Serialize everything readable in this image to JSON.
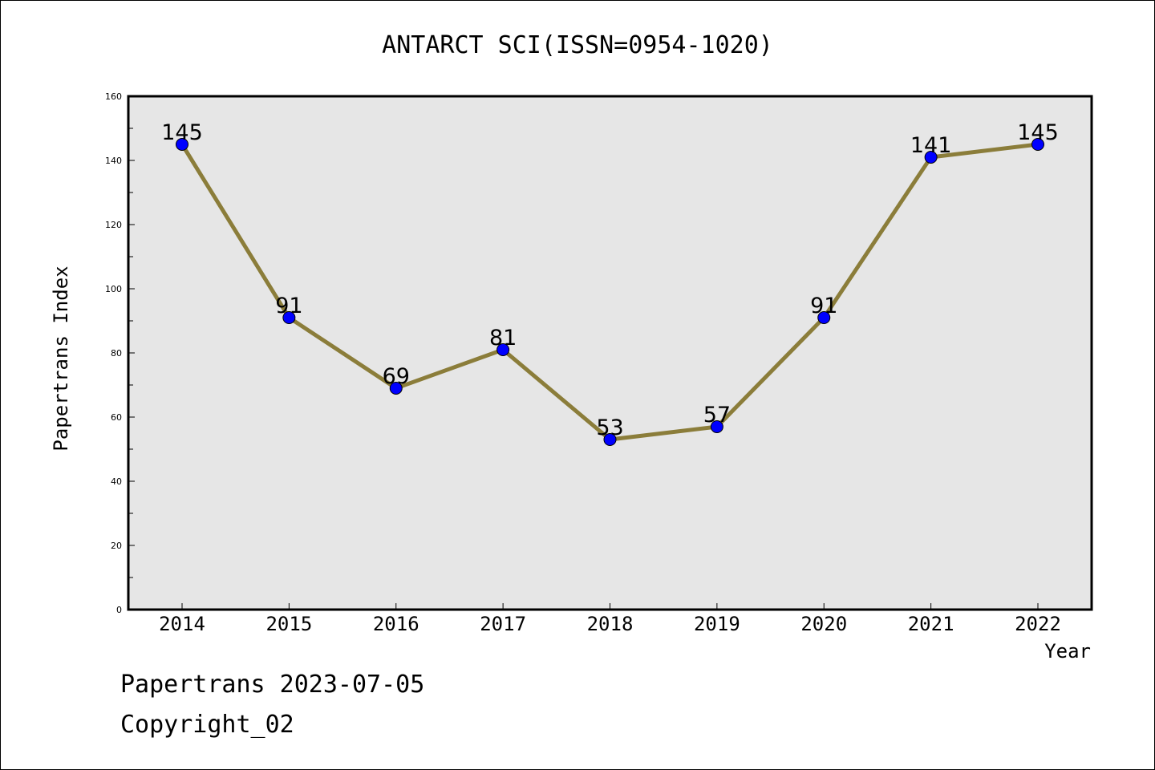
{
  "chart_data": {
    "type": "line",
    "title": "ANTARCT SCI(ISSN=0954-1020)",
    "xlabel": "Year",
    "ylabel": "Papertrans Index",
    "categories": [
      "2014",
      "2015",
      "2016",
      "2017",
      "2018",
      "2019",
      "2020",
      "2021",
      "2022"
    ],
    "values": [
      145,
      91,
      69,
      81,
      53,
      57,
      91,
      141,
      145
    ],
    "data_labels": [
      "145",
      "91",
      "69",
      "81",
      "53",
      "57",
      "91",
      "141",
      "145"
    ],
    "ylim": [
      0,
      160
    ],
    "yticks": [
      "0",
      "20",
      "40",
      "60",
      "80",
      "100",
      "120",
      "140",
      "160"
    ],
    "grid": false,
    "colors": {
      "line": "#8b7d3a",
      "marker": "#0000ff",
      "plot_background": "#e6e6e6"
    }
  },
  "footer": {
    "date_line": "Papertrans 2023-07-05",
    "copyright": "Copyright_02"
  }
}
